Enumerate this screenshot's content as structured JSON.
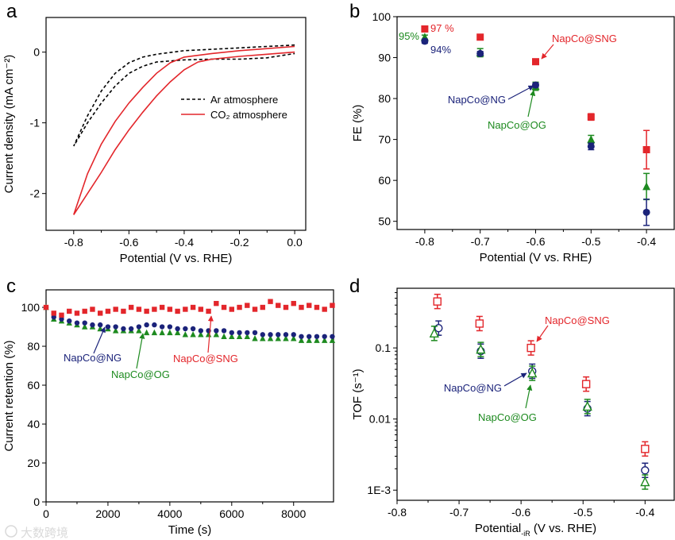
{
  "colors": {
    "sng": "#e3262b",
    "ng": "#1b237a",
    "og": "#1d8a1f",
    "ar": "#000000"
  },
  "watermark": "大数跨境",
  "chart_data": [
    {
      "panel": "a",
      "type": "line",
      "xlabel": "Potential (V vs. RHE)",
      "ylabel": "Current density (mA cm⁻²)",
      "xlim": [
        -0.9,
        0.04
      ],
      "ylim": [
        -2.52,
        0.49
      ],
      "xticks": [
        -0.8,
        -0.6,
        -0.4,
        -0.2,
        0.0
      ],
      "xtick_labels": [
        "-0.8",
        "-0.6",
        "-0.4",
        "-0.2",
        "0.0"
      ],
      "yticks": [
        0,
        -1,
        -2
      ],
      "ytick_labels": [
        "0",
        "-1",
        "-2"
      ],
      "legend_position": "center-right",
      "series": [
        {
          "name": "Ar atmosphere",
          "style": "dashed",
          "color_key": "ar",
          "x": [
            0,
            -0.1,
            -0.2,
            -0.3,
            -0.4,
            -0.5,
            -0.55,
            -0.6,
            -0.65,
            -0.7,
            -0.75,
            -0.8,
            -0.75,
            -0.7,
            -0.65,
            -0.6,
            -0.55,
            -0.5,
            -0.4,
            -0.3,
            -0.2,
            -0.1,
            0
          ],
          "y": [
            0.1,
            0.08,
            0.06,
            0.04,
            0.02,
            -0.03,
            -0.07,
            -0.15,
            -0.3,
            -0.55,
            -0.9,
            -1.33,
            -1.0,
            -0.72,
            -0.48,
            -0.3,
            -0.2,
            -0.14,
            -0.11,
            -0.1,
            -0.1,
            -0.08,
            -0.02
          ]
        },
        {
          "name": "CO₂ atmosphere",
          "style": "solid",
          "color_key": "sng",
          "x": [
            0,
            -0.1,
            -0.2,
            -0.3,
            -0.4,
            -0.45,
            -0.5,
            -0.55,
            -0.6,
            -0.65,
            -0.7,
            -0.75,
            -0.8,
            -0.75,
            -0.7,
            -0.65,
            -0.6,
            -0.55,
            -0.5,
            -0.45,
            -0.4,
            -0.35,
            -0.3,
            -0.2,
            -0.1,
            0
          ],
          "y": [
            0.08,
            0.05,
            0.02,
            -0.02,
            -0.07,
            -0.15,
            -0.3,
            -0.5,
            -0.72,
            -0.98,
            -1.3,
            -1.72,
            -2.3,
            -2.0,
            -1.7,
            -1.38,
            -1.1,
            -0.85,
            -0.62,
            -0.42,
            -0.25,
            -0.14,
            -0.1,
            -0.06,
            -0.03,
            0.0
          ]
        }
      ]
    },
    {
      "panel": "b",
      "type": "scatter",
      "xlabel": "Potential (V vs. RHE)",
      "ylabel": "FE (%)",
      "xlim": [
        -0.85,
        -0.35
      ],
      "ylim": [
        48,
        100
      ],
      "xticks": [
        -0.8,
        -0.7,
        -0.6,
        -0.5,
        -0.4
      ],
      "xtick_labels": [
        "-0.8",
        "-0.7",
        "-0.6",
        "-0.5",
        "-0.4"
      ],
      "yticks": [
        50,
        60,
        70,
        80,
        90,
        100
      ],
      "ytick_labels": [
        "50",
        "60",
        "70",
        "80",
        "90",
        "100"
      ],
      "x": [
        -0.8,
        -0.7,
        -0.6,
        -0.5,
        -0.4
      ],
      "series": [
        {
          "name": "NapCo@SNG",
          "marker": "square-filled",
          "color_key": "sng",
          "values": [
            97,
            95,
            89,
            75.5,
            67.5
          ],
          "errors": [
            0.5,
            0.5,
            0.5,
            0.8,
            4.7
          ]
        },
        {
          "name": "NapCo@OG",
          "marker": "triangle-filled",
          "color_key": "og",
          "values": [
            95,
            91.2,
            83,
            70,
            58.5
          ],
          "errors": [
            0.5,
            1,
            1,
            1,
            3.2
          ]
        },
        {
          "name": "NapCo@NG",
          "marker": "circle-filled",
          "color_key": "ng",
          "values": [
            94,
            91,
            83.3,
            68.3,
            52.2
          ],
          "errors": [
            0.5,
            0.5,
            0.5,
            0.8,
            3.2
          ]
        }
      ],
      "annotations": [
        {
          "text": "97 %",
          "color_key": "sng"
        },
        {
          "text": "95%",
          "color_key": "og"
        },
        {
          "text": "94%",
          "color_key": "ng"
        },
        {
          "text": "NapCo@SNG",
          "color_key": "sng"
        },
        {
          "text": "NapCo@NG",
          "color_key": "ng"
        },
        {
          "text": "NapCo@OG",
          "color_key": "og"
        }
      ]
    },
    {
      "panel": "c",
      "type": "scatter",
      "xlabel": "Time (s)",
      "ylabel": "Current retention (%)",
      "xlim": [
        0,
        9290
      ],
      "ylim": [
        0,
        109
      ],
      "xticks": [
        0,
        2000,
        4000,
        6000,
        8000
      ],
      "xtick_labels": [
        "0",
        "2000",
        "4000",
        "6000",
        "8000"
      ],
      "yticks": [
        0,
        20,
        40,
        60,
        80,
        100
      ],
      "ytick_labels": [
        "0",
        "20",
        "40",
        "60",
        "80",
        "100"
      ],
      "x_step": 250,
      "series": [
        {
          "name": "NapCo@SNG",
          "marker": "square-filled",
          "color_key": "sng",
          "values": [
            100,
            97,
            96,
            98,
            97,
            98,
            99,
            97,
            98,
            99,
            98,
            100,
            99,
            98,
            99,
            100,
            99,
            98,
            99,
            100,
            99,
            98,
            102,
            100,
            99,
            100,
            101,
            99,
            100,
            103,
            101,
            100,
            102,
            100,
            101,
            100,
            99,
            101
          ]
        },
        {
          "name": "NapCo@NG",
          "marker": "circle-filled",
          "color_key": "ng",
          "values": [
            100,
            95,
            94,
            93,
            92,
            92,
            91,
            91,
            90,
            90,
            89,
            89,
            90,
            91,
            91,
            90,
            90,
            89,
            89,
            89,
            88,
            88,
            88,
            88,
            87,
            87,
            87,
            87,
            86,
            86,
            86,
            86,
            86,
            85,
            85,
            85,
            85,
            85
          ]
        },
        {
          "name": "NapCo@OG",
          "marker": "triangle-filled",
          "color_key": "og",
          "values": [
            100,
            94,
            93,
            92,
            91,
            90,
            90,
            89,
            89,
            88,
            88,
            88,
            88,
            87,
            87,
            87,
            87,
            87,
            86,
            86,
            86,
            86,
            86,
            85,
            85,
            85,
            85,
            84,
            84,
            84,
            84,
            84,
            84,
            83,
            83,
            83,
            83,
            83
          ]
        }
      ],
      "annotations": [
        {
          "text": "NapCo@NG",
          "color_key": "ng"
        },
        {
          "text": "NapCo@OG",
          "color_key": "og"
        },
        {
          "text": "NapCo@SNG",
          "color_key": "sng"
        }
      ]
    },
    {
      "panel": "d",
      "type": "scatter",
      "yscale": "log",
      "xlabel": "Potential",
      "xlabel_sub": "-iR",
      "xlabel_rest": " (V vs. RHE)",
      "ylabel": "TOF (s⁻¹)",
      "xlim": [
        -0.8,
        -0.353
      ],
      "ylim": [
        0.00072,
        0.69
      ],
      "xticks": [
        -0.8,
        -0.7,
        -0.6,
        -0.5,
        -0.4
      ],
      "xtick_labels": [
        "-0.8",
        "-0.7",
        "-0.6",
        "-0.5",
        "-0.4"
      ],
      "yticks": [
        0.001,
        0.01,
        0.1
      ],
      "ytick_labels": [
        "1E-3",
        "0.01",
        "0.1"
      ],
      "series": [
        {
          "name": "NapCo@SNG",
          "marker": "square-open",
          "color_key": "sng",
          "x": [
            -0.735,
            -0.667,
            -0.584,
            -0.495,
            -0.4
          ],
          "values": [
            0.45,
            0.22,
            0.1,
            0.031,
            0.0038
          ]
        },
        {
          "name": "NapCo@NG",
          "marker": "circle-open",
          "color_key": "ng",
          "x": [
            -0.733,
            -0.665,
            -0.582,
            -0.493,
            -0.4
          ],
          "values": [
            0.19,
            0.09,
            0.047,
            0.014,
            0.0019
          ]
        },
        {
          "name": "NapCo@OG",
          "marker": "triangle-open",
          "color_key": "og",
          "x": [
            -0.74,
            -0.665,
            -0.582,
            -0.493,
            -0.4
          ],
          "values": [
            0.16,
            0.095,
            0.044,
            0.015,
            0.0013
          ]
        }
      ],
      "annotations": [
        {
          "text": "NapCo@SNG",
          "color_key": "sng"
        },
        {
          "text": "NapCo@NG",
          "color_key": "ng"
        },
        {
          "text": "NapCo@OG",
          "color_key": "og"
        }
      ]
    }
  ]
}
